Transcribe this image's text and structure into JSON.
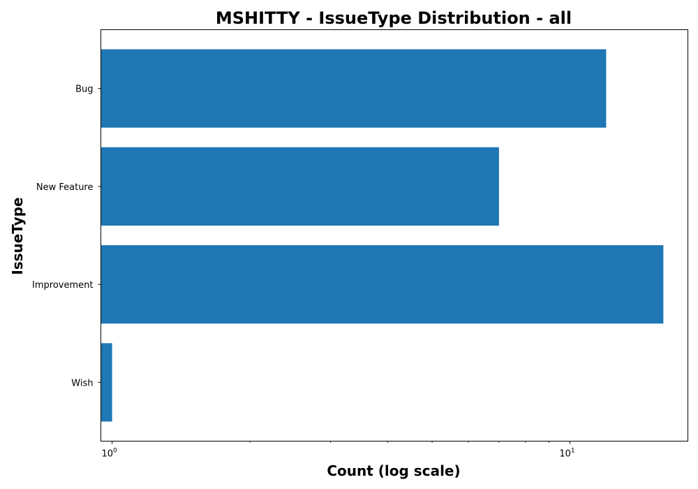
{
  "chart_data": {
    "type": "bar",
    "orientation": "horizontal",
    "title": "MSHITTY - IssueType Distribution - all",
    "xlabel": "Count (log scale)",
    "ylabel": "IssueType",
    "x_scale": "log",
    "xlim": [
      0.945,
      18.1
    ],
    "x_ticks": [
      {
        "value": 1,
        "base": "10",
        "exp": "0"
      },
      {
        "value": 10,
        "base": "10",
        "exp": "1"
      }
    ],
    "categories": [
      "Bug",
      "New Feature",
      "Improvement",
      "Wish"
    ],
    "values": [
      12,
      7,
      16,
      1
    ],
    "bar_color": "#1f77b4",
    "grid": false,
    "legend": false
  }
}
